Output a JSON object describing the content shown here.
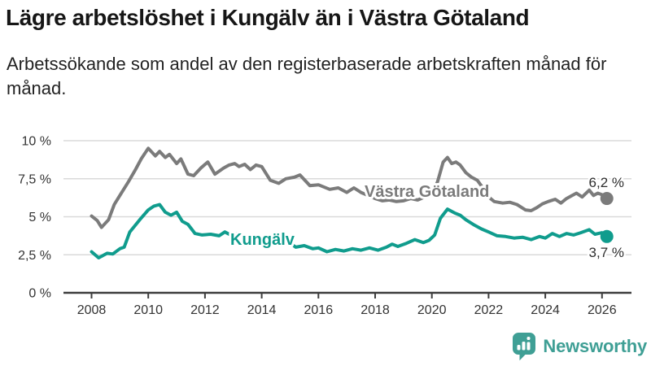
{
  "header": {
    "title": "Lägre arbetslöshet i Kungälv än i Västra Götaland",
    "subtitle": "Arbetssökande som andel av den registerbaserade arbetskraften månad för månad."
  },
  "footer": {
    "brand": "Newsworthy",
    "brand_color": "#3f9f95"
  },
  "colors": {
    "kungalv": "#109c8d",
    "vastra_gotaland": "#7b7b7b",
    "grid": "#dadada",
    "axis": "#3d3d3d",
    "tick_label": "#333333",
    "value_label": "#2d2d2d",
    "title": "#161616"
  },
  "chart_data": {
    "type": "line",
    "title": "Lägre arbetslöshet i Kungälv än i Västra Götaland",
    "subtitle": "Arbetssökande som andel av den registerbaserade arbetskraften månad för månad.",
    "unit": "percent",
    "grid": "horizontal",
    "legend_position": "inline-labels",
    "x_axis": {
      "range": [
        2007.0,
        2026.9
      ],
      "ticks": [
        2008,
        2010,
        2012,
        2014,
        2016,
        2018,
        2020,
        2022,
        2024,
        2026
      ],
      "tick_labels": [
        "2008",
        "2010",
        "2012",
        "2014",
        "2016",
        "2018",
        "2020",
        "2022",
        "2024",
        "2026"
      ]
    },
    "y_axis": {
      "range": [
        0,
        10
      ],
      "ticks": [
        0,
        2.5,
        5,
        7.5,
        10
      ],
      "tick_labels": [
        "0 %",
        "2,5 %",
        "5 %",
        "7,5 %",
        "10 %"
      ]
    },
    "series": [
      {
        "name": "Västra Götaland",
        "color": "#7b7b7b",
        "end_label": "6,2 %",
        "end_value": 6.2,
        "points": [
          [
            2008.0,
            5.05
          ],
          [
            2008.2,
            4.75
          ],
          [
            2008.35,
            4.3
          ],
          [
            2008.6,
            4.8
          ],
          [
            2008.8,
            5.8
          ],
          [
            2009.0,
            6.4
          ],
          [
            2009.3,
            7.3
          ],
          [
            2009.55,
            8.1
          ],
          [
            2009.75,
            8.8
          ],
          [
            2010.0,
            9.5
          ],
          [
            2010.25,
            9.0
          ],
          [
            2010.4,
            9.3
          ],
          [
            2010.6,
            8.9
          ],
          [
            2010.75,
            9.1
          ],
          [
            2011.0,
            8.5
          ],
          [
            2011.15,
            8.8
          ],
          [
            2011.4,
            7.8
          ],
          [
            2011.6,
            7.7
          ],
          [
            2011.85,
            8.2
          ],
          [
            2012.1,
            8.6
          ],
          [
            2012.35,
            7.8
          ],
          [
            2012.65,
            8.2
          ],
          [
            2012.85,
            8.4
          ],
          [
            2013.05,
            8.5
          ],
          [
            2013.2,
            8.3
          ],
          [
            2013.4,
            8.45
          ],
          [
            2013.6,
            8.1
          ],
          [
            2013.8,
            8.4
          ],
          [
            2014.0,
            8.3
          ],
          [
            2014.3,
            7.4
          ],
          [
            2014.6,
            7.2
          ],
          [
            2014.85,
            7.5
          ],
          [
            2015.15,
            7.6
          ],
          [
            2015.35,
            7.75
          ],
          [
            2015.7,
            7.05
          ],
          [
            2016.0,
            7.1
          ],
          [
            2016.4,
            6.8
          ],
          [
            2016.7,
            6.9
          ],
          [
            2017.0,
            6.6
          ],
          [
            2017.25,
            6.9
          ],
          [
            2017.5,
            6.6
          ],
          [
            2017.75,
            6.4
          ],
          [
            2018.0,
            6.2
          ],
          [
            2018.25,
            6.05
          ],
          [
            2018.5,
            6.1
          ],
          [
            2018.75,
            6.0
          ],
          [
            2019.0,
            6.05
          ],
          [
            2019.25,
            6.2
          ],
          [
            2019.5,
            6.1
          ],
          [
            2019.75,
            6.3
          ],
          [
            2020.0,
            6.5
          ],
          [
            2020.2,
            7.3
          ],
          [
            2020.4,
            8.6
          ],
          [
            2020.55,
            8.9
          ],
          [
            2020.7,
            8.5
          ],
          [
            2020.85,
            8.6
          ],
          [
            2021.0,
            8.4
          ],
          [
            2021.2,
            7.9
          ],
          [
            2021.4,
            7.6
          ],
          [
            2021.6,
            7.4
          ],
          [
            2021.8,
            6.9
          ],
          [
            2022.0,
            6.3
          ],
          [
            2022.2,
            6.0
          ],
          [
            2022.5,
            5.9
          ],
          [
            2022.75,
            5.95
          ],
          [
            2023.0,
            5.8
          ],
          [
            2023.3,
            5.45
          ],
          [
            2023.5,
            5.4
          ],
          [
            2023.7,
            5.6
          ],
          [
            2023.9,
            5.85
          ],
          [
            2024.1,
            6.0
          ],
          [
            2024.35,
            6.15
          ],
          [
            2024.55,
            5.9
          ],
          [
            2024.75,
            6.2
          ],
          [
            2024.95,
            6.4
          ],
          [
            2025.1,
            6.55
          ],
          [
            2025.3,
            6.3
          ],
          [
            2025.55,
            6.75
          ],
          [
            2025.7,
            6.4
          ],
          [
            2025.85,
            6.55
          ],
          [
            2026.0,
            6.45
          ],
          [
            2026.17,
            6.2
          ]
        ]
      },
      {
        "name": "Kungälv",
        "color": "#109c8d",
        "end_label": "3,7 %",
        "end_value": 3.7,
        "points": [
          [
            2008.0,
            2.7
          ],
          [
            2008.25,
            2.3
          ],
          [
            2008.55,
            2.6
          ],
          [
            2008.75,
            2.55
          ],
          [
            2009.0,
            2.9
          ],
          [
            2009.15,
            3.0
          ],
          [
            2009.35,
            4.0
          ],
          [
            2009.7,
            4.8
          ],
          [
            2010.0,
            5.45
          ],
          [
            2010.2,
            5.7
          ],
          [
            2010.4,
            5.8
          ],
          [
            2010.6,
            5.3
          ],
          [
            2010.8,
            5.1
          ],
          [
            2011.0,
            5.3
          ],
          [
            2011.2,
            4.7
          ],
          [
            2011.4,
            4.5
          ],
          [
            2011.65,
            3.9
          ],
          [
            2011.9,
            3.8
          ],
          [
            2012.2,
            3.85
          ],
          [
            2012.5,
            3.75
          ],
          [
            2012.7,
            4.0
          ],
          [
            2012.9,
            3.8
          ],
          [
            2013.2,
            3.9
          ],
          [
            2013.5,
            3.6
          ],
          [
            2013.8,
            3.7
          ],
          [
            2014.0,
            3.65
          ],
          [
            2014.3,
            3.5
          ],
          [
            2014.6,
            3.55
          ],
          [
            2014.9,
            3.4
          ],
          [
            2015.2,
            3.0
          ],
          [
            2015.5,
            3.1
          ],
          [
            2015.8,
            2.9
          ],
          [
            2016.0,
            2.95
          ],
          [
            2016.3,
            2.7
          ],
          [
            2016.6,
            2.85
          ],
          [
            2016.9,
            2.75
          ],
          [
            2017.2,
            2.9
          ],
          [
            2017.5,
            2.8
          ],
          [
            2017.8,
            2.95
          ],
          [
            2018.1,
            2.8
          ],
          [
            2018.4,
            3.0
          ],
          [
            2018.6,
            3.2
          ],
          [
            2018.8,
            3.05
          ],
          [
            2019.1,
            3.25
          ],
          [
            2019.4,
            3.5
          ],
          [
            2019.7,
            3.3
          ],
          [
            2019.9,
            3.45
          ],
          [
            2020.1,
            3.8
          ],
          [
            2020.3,
            4.9
          ],
          [
            2020.55,
            5.5
          ],
          [
            2020.8,
            5.25
          ],
          [
            2021.0,
            5.1
          ],
          [
            2021.2,
            4.8
          ],
          [
            2021.5,
            4.45
          ],
          [
            2021.75,
            4.2
          ],
          [
            2022.0,
            4.0
          ],
          [
            2022.3,
            3.75
          ],
          [
            2022.6,
            3.7
          ],
          [
            2022.9,
            3.6
          ],
          [
            2023.2,
            3.65
          ],
          [
            2023.5,
            3.5
          ],
          [
            2023.8,
            3.7
          ],
          [
            2024.0,
            3.6
          ],
          [
            2024.25,
            3.9
          ],
          [
            2024.5,
            3.7
          ],
          [
            2024.75,
            3.9
          ],
          [
            2025.0,
            3.8
          ],
          [
            2025.25,
            3.95
          ],
          [
            2025.55,
            4.15
          ],
          [
            2025.75,
            3.85
          ],
          [
            2026.0,
            3.95
          ],
          [
            2026.17,
            3.7
          ]
        ]
      }
    ]
  }
}
